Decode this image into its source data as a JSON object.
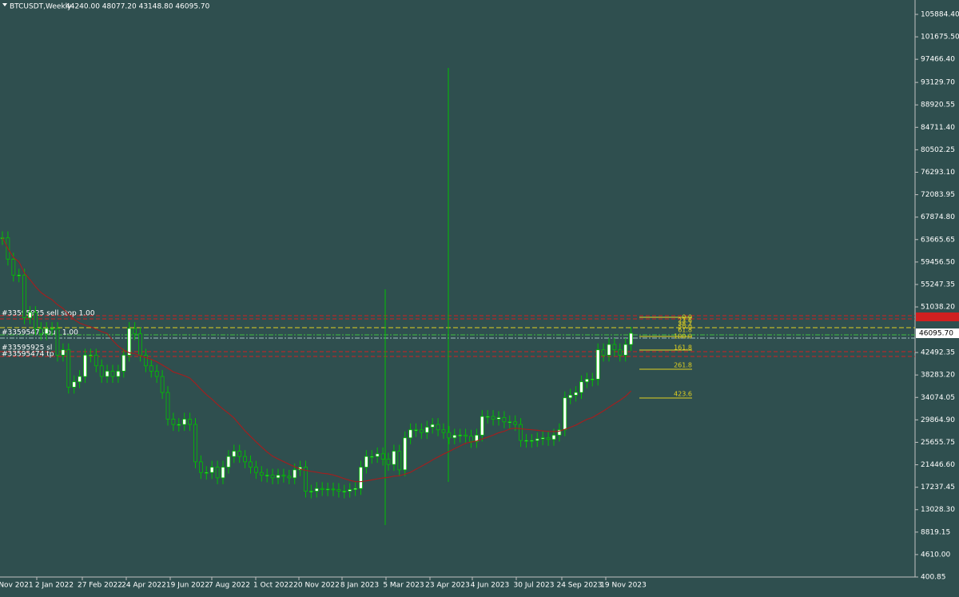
{
  "header": {
    "title": "BTCUSDT,Weekly",
    "quote": "44240.00 48077.20 43148.80 46095.70"
  },
  "price_axis": {
    "ylim": [
      400.85,
      105884.4
    ],
    "ticks": [
      {
        "value": 105884.4,
        "label": "105884.40"
      },
      {
        "value": 101675.5,
        "label": "101675.50"
      },
      {
        "value": 97466.4,
        "label": "97466.40"
      },
      {
        "value": 93129.7,
        "label": "93129.70"
      },
      {
        "value": 88920.55,
        "label": "88920.55"
      },
      {
        "value": 84711.4,
        "label": "84711.40"
      },
      {
        "value": 80502.25,
        "label": "80502.25"
      },
      {
        "value": 76293.1,
        "label": "76293.10"
      },
      {
        "value": 72083.95,
        "label": "72083.95"
      },
      {
        "value": 67874.8,
        "label": "67874.80"
      },
      {
        "value": 63665.65,
        "label": "63665.65"
      },
      {
        "value": 59456.5,
        "label": "59456.50"
      },
      {
        "value": 55247.35,
        "label": "55247.35"
      },
      {
        "value": 51038.2,
        "label": "51038.20"
      },
      {
        "value": 42492.35,
        "label": "42492.35"
      },
      {
        "value": 38283.2,
        "label": "38283.20"
      },
      {
        "value": 34074.05,
        "label": "34074.05"
      },
      {
        "value": 29864.9,
        "label": "29864.90"
      },
      {
        "value": 25655.75,
        "label": "25655.75"
      },
      {
        "value": 21446.6,
        "label": "21446.60"
      },
      {
        "value": 17237.45,
        "label": "17237.45"
      },
      {
        "value": 13028.3,
        "label": "13028.30"
      },
      {
        "value": 8819.15,
        "label": "8819.15"
      },
      {
        "value": 4610.0,
        "label": "4610.00"
      },
      {
        "value": 400.85,
        "label": "400.85"
      }
    ],
    "current": {
      "value": 46095.7,
      "label": "46095.70"
    }
  },
  "time_axis": [
    "Nov 2021",
    "2 Jan 2022",
    "27 Feb 2022",
    "24 Apr 2022",
    "19 Jun 2022",
    "7 Aug 2022",
    "1 Oct 2022",
    "20 Nov 2022",
    "8 Jan 2023",
    "5 Mar 2023",
    "23 Apr 2023",
    "4 Jun 2023",
    "30 Jul 2023",
    "24 Sep 2023",
    "19 Nov 2023"
  ],
  "closes": [
    64000,
    60000,
    57000,
    57000,
    49000,
    50000,
    47000,
    46000,
    47000,
    47000,
    42000,
    43000,
    36000,
    37000,
    38000,
    42000,
    42000,
    40000,
    38000,
    39000,
    38000,
    39000,
    42000,
    47000,
    46000,
    42000,
    40000,
    39000,
    38000,
    35000,
    30000,
    29000,
    29000,
    30000,
    29000,
    22000,
    20000,
    20000,
    21000,
    19000,
    21000,
    23000,
    24000,
    23000,
    22000,
    21000,
    20000,
    19500,
    19500,
    19000,
    19500,
    19300,
    19000,
    20500,
    21000,
    16500,
    16500,
    17000,
    16800,
    16900,
    16800,
    16500,
    16500,
    16800,
    17000,
    21000,
    23000,
    23000,
    23500,
    22500,
    21500,
    24000,
    20500,
    26500,
    28000,
    28000,
    27500,
    28500,
    29000,
    28000,
    27500,
    26500,
    27000,
    27000,
    26800,
    25800,
    27000,
    30500,
    30500,
    30000,
    30300,
    29500,
    29500,
    29000,
    26000,
    26000,
    26000,
    26300,
    26500,
    26200,
    27000,
    28000,
    34000,
    34500,
    35000,
    37000,
    37500,
    37500,
    43000,
    42000,
    44000,
    43000,
    42000,
    44000,
    46095.7
  ],
  "fibo": [
    "0.0",
    "23.6",
    "38.2",
    "50.0",
    "61.8",
    "100.0",
    "161.8",
    "261.8",
    "423.6"
  ],
  "orders": [
    "#33595925 sell stop 1.00",
    "#33595474 buy 1.00",
    "#33595925 sl",
    "#33595474 tp"
  ]
}
